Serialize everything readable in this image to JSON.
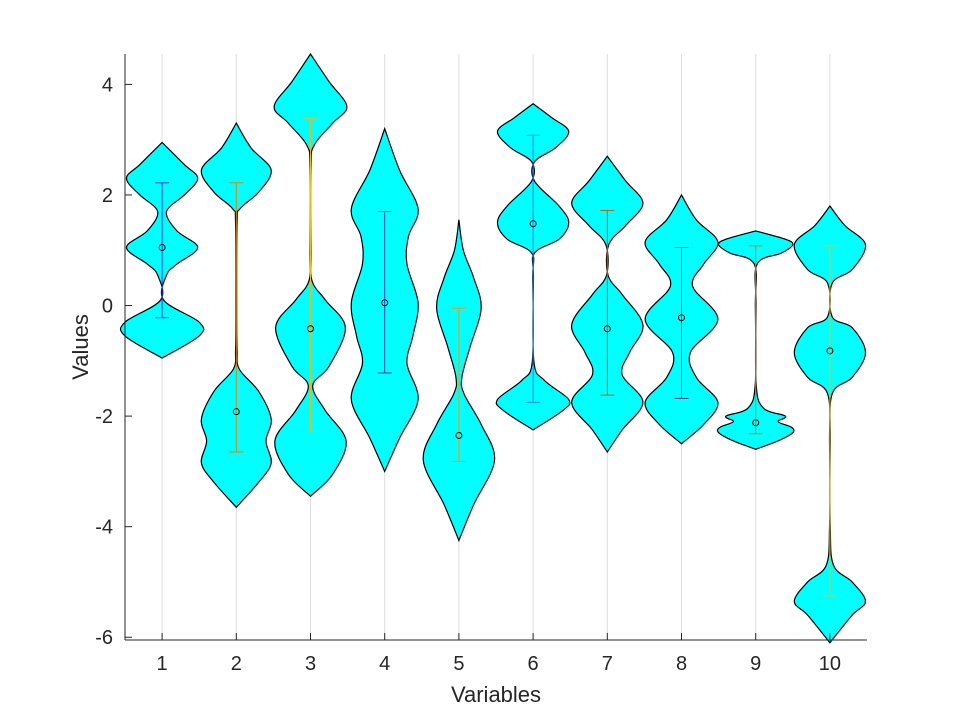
{
  "chart_data": {
    "type": "violin",
    "title": "",
    "xlabel": "Variables",
    "ylabel": "Values",
    "xlim": [
      0.5,
      10.5
    ],
    "ylim": [
      -6.05,
      4.55
    ],
    "xticks": [
      "1",
      "2",
      "3",
      "4",
      "5",
      "6",
      "7",
      "8",
      "9",
      "10"
    ],
    "yticks": [
      4,
      2,
      0,
      -2,
      -4,
      -6
    ],
    "ytick_labels": [
      "4",
      "2",
      "0",
      "-2",
      "-4",
      "-6"
    ],
    "grid": "vertical lines at categories",
    "fill_color": "#00ffff",
    "edge_color": "#000000",
    "violins": [
      {
        "x": 1,
        "mean": 1.05,
        "err_low": -0.22,
        "err_high": 2.22,
        "err_color": "#1f3fff",
        "ymin": -0.95,
        "ymax": 2.95,
        "profile": [
          [
            -0.95,
            0.0
          ],
          [
            -0.55,
            0.5
          ],
          [
            -0.3,
            0.5
          ],
          [
            0.1,
            0.02
          ],
          [
            0.55,
            0.06
          ],
          [
            0.75,
            0.2
          ],
          [
            1.05,
            0.48
          ],
          [
            1.35,
            0.2
          ],
          [
            1.7,
            0.06
          ],
          [
            2.0,
            0.3
          ],
          [
            2.3,
            0.48
          ],
          [
            2.55,
            0.3
          ],
          [
            2.95,
            0.0
          ]
        ]
      },
      {
        "x": 2,
        "mean": -1.92,
        "err_low": -2.65,
        "err_high": 2.22,
        "err_color": "#e08010",
        "ymin": -3.65,
        "ymax": 3.3,
        "profile": [
          [
            -3.65,
            0.0
          ],
          [
            -3.2,
            0.3
          ],
          [
            -2.85,
            0.47
          ],
          [
            -2.45,
            0.4
          ],
          [
            -2.05,
            0.47
          ],
          [
            -1.55,
            0.3
          ],
          [
            -1.15,
            0.04
          ],
          [
            -0.8,
            0.01
          ],
          [
            0.0,
            0.005
          ],
          [
            1.5,
            0.01
          ],
          [
            1.75,
            0.05
          ],
          [
            2.05,
            0.3
          ],
          [
            2.45,
            0.47
          ],
          [
            2.85,
            0.2
          ],
          [
            3.3,
            0.0
          ]
        ]
      },
      {
        "x": 3,
        "mean": -0.42,
        "err_low": -2.28,
        "err_high": 3.38,
        "err_color": "#e0c020",
        "ymin": -3.45,
        "ymax": 4.55,
        "profile": [
          [
            -3.45,
            0.0
          ],
          [
            -3.05,
            0.3
          ],
          [
            -2.45,
            0.48
          ],
          [
            -1.9,
            0.2
          ],
          [
            -1.45,
            0.03
          ],
          [
            -1.1,
            0.25
          ],
          [
            -0.4,
            0.47
          ],
          [
            0.1,
            0.2
          ],
          [
            0.45,
            0.02
          ],
          [
            1.0,
            0.005
          ],
          [
            2.5,
            0.005
          ],
          [
            2.9,
            0.05
          ],
          [
            3.3,
            0.3
          ],
          [
            3.6,
            0.49
          ],
          [
            4.05,
            0.25
          ],
          [
            4.55,
            0.0
          ]
        ]
      },
      {
        "x": 4,
        "mean": 0.05,
        "err_low": -1.22,
        "err_high": 1.7,
        "err_color": "#4040c0",
        "ymin": -3.0,
        "ymax": 3.2,
        "profile": [
          [
            -3.0,
            0.0
          ],
          [
            -2.4,
            0.2
          ],
          [
            -1.7,
            0.45
          ],
          [
            -1.05,
            0.3
          ],
          [
            -0.55,
            0.38
          ],
          [
            0.05,
            0.45
          ],
          [
            0.75,
            0.3
          ],
          [
            1.25,
            0.32
          ],
          [
            1.75,
            0.45
          ],
          [
            2.45,
            0.2
          ],
          [
            3.2,
            0.0
          ]
        ]
      },
      {
        "x": 5,
        "mean": -2.35,
        "err_low": -2.82,
        "err_high": -0.05,
        "err_color": "#e0a010",
        "ymin": -4.25,
        "ymax": 1.55,
        "profile": [
          [
            -4.25,
            0.0
          ],
          [
            -3.6,
            0.2
          ],
          [
            -2.8,
            0.48
          ],
          [
            -2.15,
            0.3
          ],
          [
            -1.6,
            0.07
          ],
          [
            -1.3,
            0.04
          ],
          [
            -0.75,
            0.15
          ],
          [
            -0.05,
            0.3
          ],
          [
            0.5,
            0.2
          ],
          [
            1.0,
            0.06
          ],
          [
            1.55,
            0.0
          ]
        ]
      },
      {
        "x": 6,
        "mean": 1.48,
        "err_low": -1.75,
        "err_high": 3.08,
        "err_color": "#2080ff",
        "ymin": -2.25,
        "ymax": 3.65,
        "profile": [
          [
            -2.25,
            0.0
          ],
          [
            -1.9,
            0.4
          ],
          [
            -1.7,
            0.48
          ],
          [
            -1.35,
            0.15
          ],
          [
            -1.0,
            0.01
          ],
          [
            0.5,
            0.005
          ],
          [
            0.95,
            0.02
          ],
          [
            1.2,
            0.35
          ],
          [
            1.5,
            0.48
          ],
          [
            1.8,
            0.35
          ],
          [
            2.25,
            0.02
          ],
          [
            2.6,
            0.02
          ],
          [
            2.85,
            0.3
          ],
          [
            3.15,
            0.48
          ],
          [
            3.4,
            0.25
          ],
          [
            3.65,
            0.0
          ]
        ]
      },
      {
        "x": 7,
        "mean": -0.42,
        "err_low": -1.62,
        "err_high": 1.72,
        "err_color": "#c06020",
        "ymin": -2.65,
        "ymax": 2.7,
        "profile": [
          [
            -2.65,
            0.0
          ],
          [
            -2.25,
            0.2
          ],
          [
            -1.75,
            0.48
          ],
          [
            -1.25,
            0.2
          ],
          [
            -0.85,
            0.3
          ],
          [
            -0.35,
            0.48
          ],
          [
            0.2,
            0.2
          ],
          [
            0.55,
            0.01
          ],
          [
            1.1,
            0.02
          ],
          [
            1.45,
            0.25
          ],
          [
            1.85,
            0.48
          ],
          [
            2.25,
            0.25
          ],
          [
            2.7,
            0.0
          ]
        ]
      },
      {
        "x": 8,
        "mean": -0.22,
        "err_low": -1.68,
        "err_high": 1.05,
        "err_color": "#404080",
        "ymin": -2.5,
        "ymax": 2.0,
        "profile": [
          [
            -2.5,
            0.0
          ],
          [
            -2.15,
            0.3
          ],
          [
            -1.75,
            0.49
          ],
          [
            -1.3,
            0.2
          ],
          [
            -0.85,
            0.12
          ],
          [
            -0.25,
            0.49
          ],
          [
            0.35,
            0.15
          ],
          [
            0.75,
            0.3
          ],
          [
            1.15,
            0.49
          ],
          [
            1.55,
            0.2
          ],
          [
            2.0,
            0.0
          ]
        ]
      },
      {
        "x": 9,
        "mean": -2.12,
        "err_low": -2.32,
        "err_high": 1.08,
        "err_color": "#c08020",
        "ymin": -2.6,
        "ymax": 1.35,
        "profile": [
          [
            -2.6,
            0.0
          ],
          [
            -2.45,
            0.3
          ],
          [
            -2.3,
            0.5
          ],
          [
            -2.2,
            0.48
          ],
          [
            -2.1,
            0.3
          ],
          [
            -2.0,
            0.4
          ],
          [
            -1.85,
            0.1
          ],
          [
            -1.4,
            0.005
          ],
          [
            0.0,
            0.005
          ],
          [
            0.75,
            0.02
          ],
          [
            0.95,
            0.35
          ],
          [
            1.1,
            0.5
          ],
          [
            1.2,
            0.4
          ],
          [
            1.35,
            0.0
          ]
        ]
      },
      {
        "x": 10,
        "mean": -0.82,
        "err_low": -5.25,
        "err_high": 1.08,
        "err_color": "#e0c020",
        "ymin": -6.1,
        "ymax": 1.8,
        "profile": [
          [
            -6.1,
            0.0
          ],
          [
            -5.6,
            0.3
          ],
          [
            -5.35,
            0.48
          ],
          [
            -5.0,
            0.3
          ],
          [
            -4.7,
            0.05
          ],
          [
            -4.0,
            0.005
          ],
          [
            -2.5,
            0.005
          ],
          [
            -1.6,
            0.03
          ],
          [
            -1.3,
            0.3
          ],
          [
            -0.85,
            0.48
          ],
          [
            -0.4,
            0.3
          ],
          [
            -0.2,
            0.03
          ],
          [
            0.4,
            0.03
          ],
          [
            0.65,
            0.3
          ],
          [
            1.1,
            0.48
          ],
          [
            1.45,
            0.2
          ],
          [
            1.8,
            0.0
          ]
        ]
      }
    ]
  }
}
